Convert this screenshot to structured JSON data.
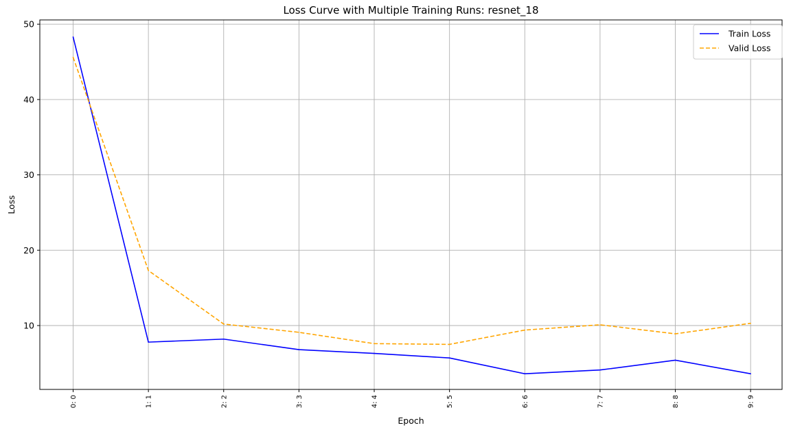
{
  "chart_data": {
    "type": "line",
    "title": "Loss Curve with Multiple Training Runs: resnet_18",
    "xlabel": "Epoch",
    "ylabel": "Loss",
    "categories": [
      "0: 0",
      "1: 1",
      "2: 2",
      "3: 3",
      "4: 4",
      "5: 5",
      "6: 6",
      "7: 7",
      "8: 8",
      "9: 9"
    ],
    "yticks": [
      10,
      20,
      30,
      40,
      50
    ],
    "ylim": [
      1.3,
      50.5
    ],
    "grid": true,
    "legend_position": "top-right",
    "series": [
      {
        "name": "Train Loss",
        "color": "#0000ff",
        "style": "solid",
        "values": [
          48.3,
          7.8,
          8.2,
          6.8,
          6.3,
          5.7,
          3.6,
          4.1,
          5.4,
          3.6
        ]
      },
      {
        "name": "Valid Loss",
        "color": "#ffa500",
        "style": "dashed",
        "values": [
          45.6,
          17.3,
          10.2,
          9.1,
          7.6,
          7.5,
          9.4,
          10.1,
          8.9,
          10.3
        ]
      }
    ]
  }
}
